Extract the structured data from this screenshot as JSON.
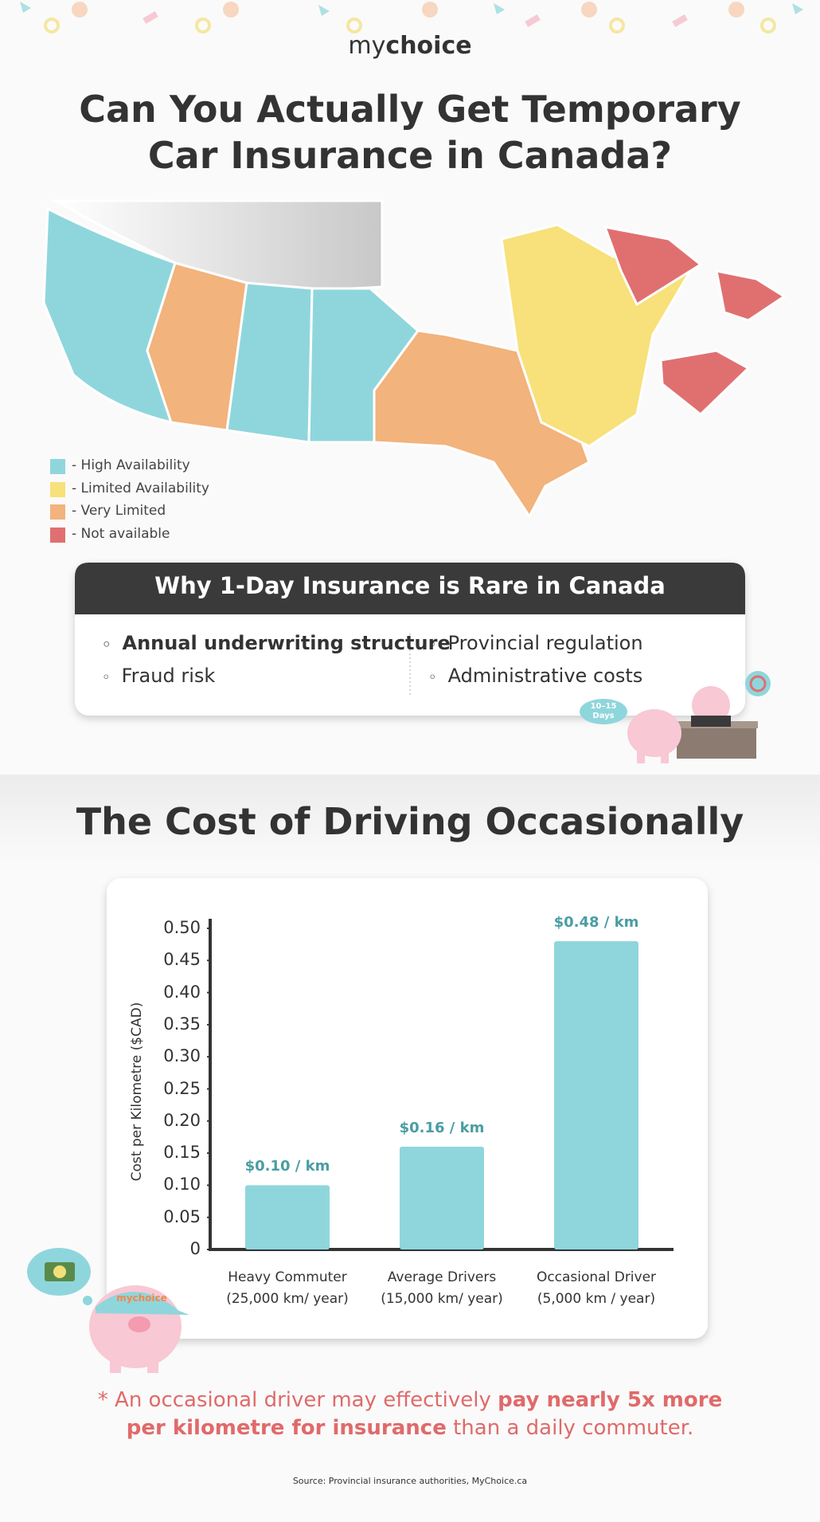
{
  "header": {
    "logo_my": "my",
    "logo_choice": "choice",
    "title_line1": "Can You Actually Get Temporary",
    "title_line2": "Car Insurance in Canada?"
  },
  "map": {
    "legend": [
      {
        "label": "- High Availability",
        "color": "#8fd6dc"
      },
      {
        "label": "- Limited Availability",
        "color": "#f8e07a"
      },
      {
        "label": "- Very Limited",
        "color": "#f2b37c"
      },
      {
        "label": "- Not available",
        "color": "#e07070"
      }
    ]
  },
  "why_box": {
    "title": "Why 1-Day Insurance is Rare in Canada",
    "left": [
      "Annual underwriting structure",
      "Fraud risk"
    ],
    "right": [
      "Provincial regulation",
      "Administrative costs"
    ],
    "badge_line1": "10–15",
    "badge_line2": "Days"
  },
  "cost_title": "The Cost of Driving Occasionally",
  "chart_data": {
    "type": "bar",
    "ylabel": "Cost per Kilometre ($CAD)",
    "categories": [
      "Heavy Commuter\n(25,000 km/ year)",
      "Average Drivers\n(15,000 km/ year)",
      "Occasional Driver\n(5,000 km / year)"
    ],
    "values": [
      0.1,
      0.16,
      0.48
    ],
    "value_labels": [
      "$0.10 / km",
      "$0.16 / km",
      "$0.48 / km"
    ],
    "color": "#8fd6dc",
    "ylim": [
      0,
      0.5
    ],
    "yticks": [
      0,
      0.05,
      {
        "value": 0.1,
        "label": "0.10"
      },
      0.15,
      {
        "value": 0.2,
        "label": "0.20"
      },
      0.25,
      {
        "value": 0.3,
        "label": "0.30"
      },
      0.35,
      {
        "value": 0.4,
        "label": "0.40"
      },
      0.45,
      {
        "value": 0.5,
        "label": "0.50"
      }
    ]
  },
  "footnote": {
    "part1": "* An occasional driver may effectively ",
    "part2": "pay nearly 5x more per kilometre for insurance",
    "part3": " than a daily commuter."
  },
  "source": "Source: Provincial insurance authorities, MyChoice.ca",
  "cap_logo": "mychoice"
}
